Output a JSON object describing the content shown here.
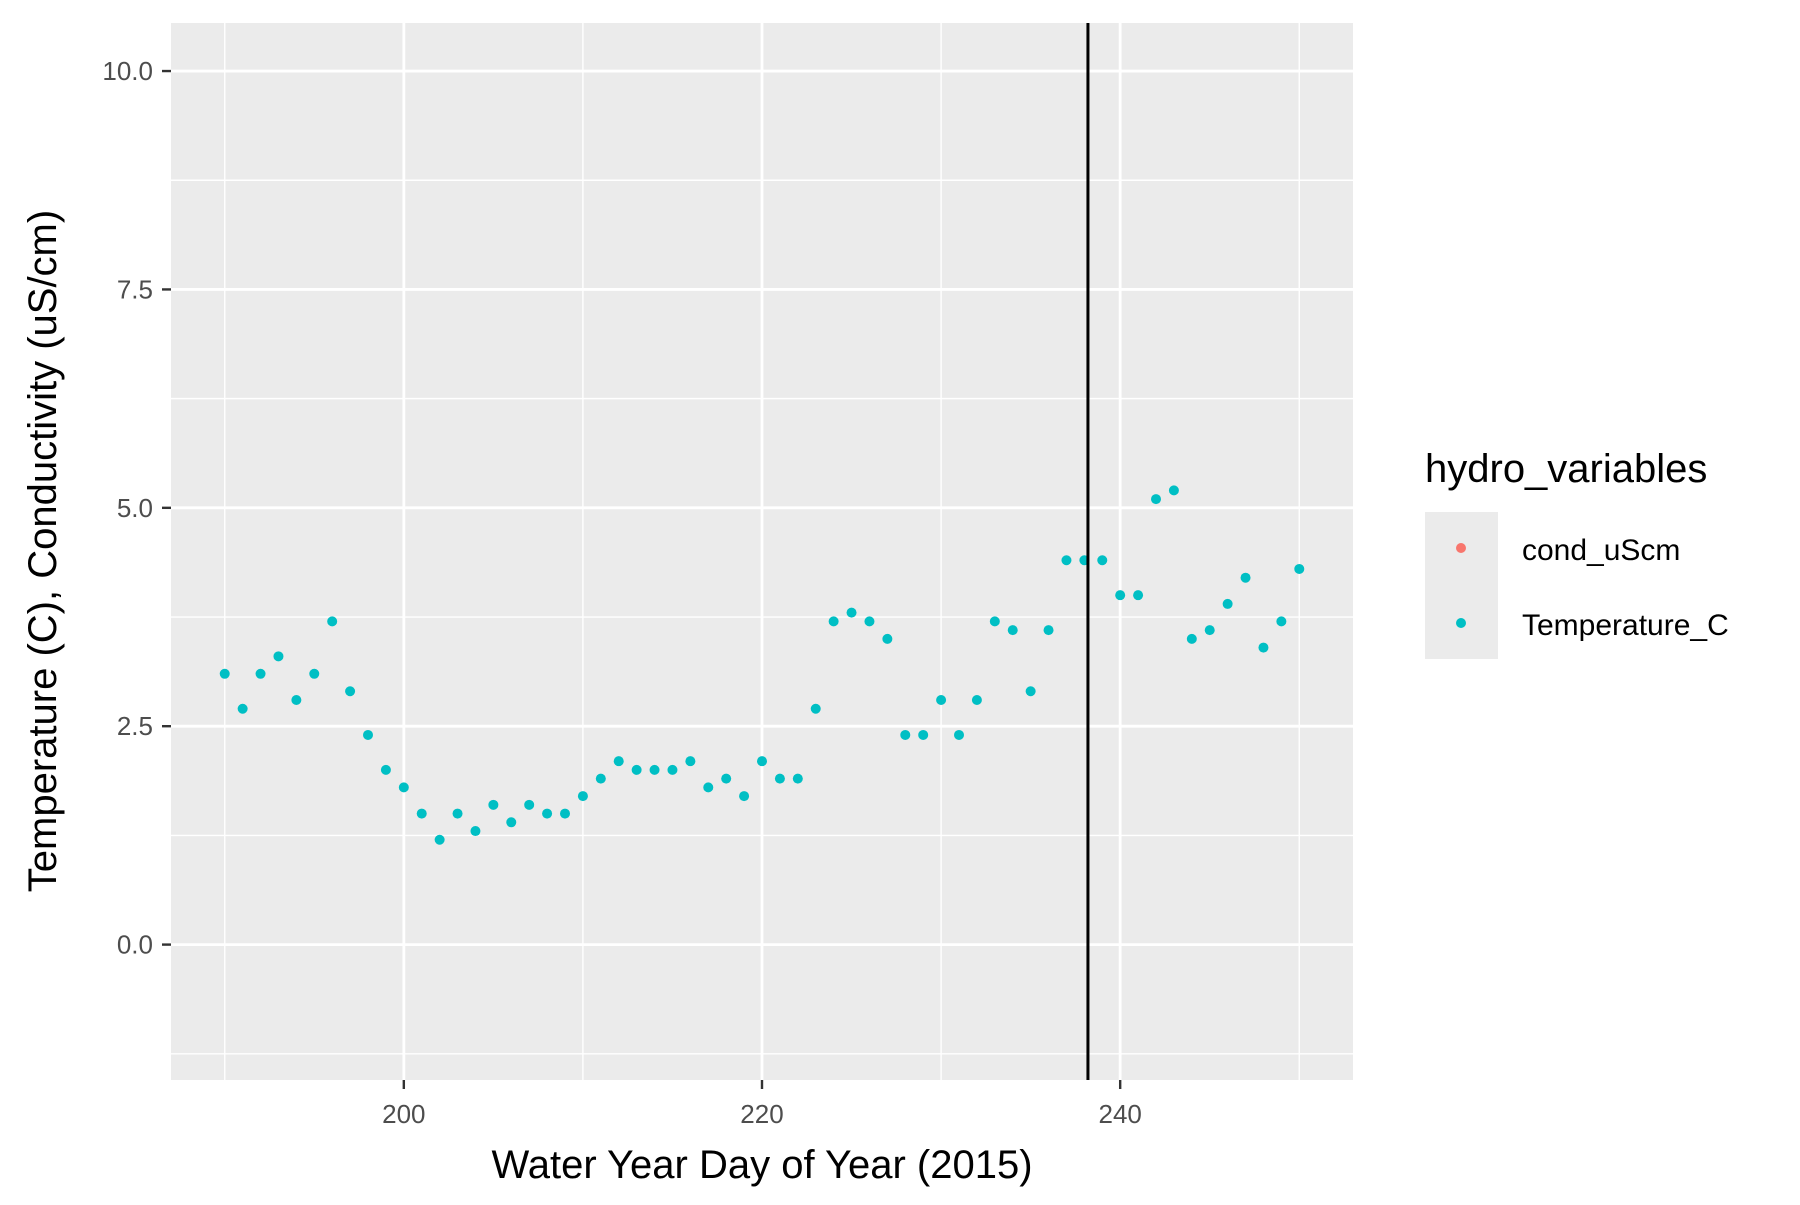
{
  "chart_data": {
    "type": "scatter",
    "title": "",
    "xlabel": "Water Year Day of Year (2015)",
    "ylabel": "Temperature (C), Conductivity (uS/cm)",
    "xlim": [
      187,
      253
    ],
    "ylim": [
      -1.55,
      10.55
    ],
    "x_ticks": [
      200,
      220,
      240
    ],
    "x_tick_labels": [
      "200",
      "220",
      "240"
    ],
    "y_ticks": [
      0,
      2.5,
      5,
      7.5,
      10
    ],
    "y_tick_labels": [
      "0.0",
      "2.5",
      "5.0",
      "7.5",
      "10.0"
    ],
    "grid": true,
    "panel_background": "#ebebeb",
    "vline": {
      "x": 238.2,
      "color": "#000000"
    },
    "legend": {
      "title": "hydro_variables",
      "placement": "right",
      "entries": [
        {
          "label": "cond_uScm",
          "color": "#f8766d"
        },
        {
          "label": "Temperature_C",
          "color": "#00bfc4"
        }
      ]
    },
    "series": [
      {
        "name": "cond_uScm",
        "color": "#f8766d",
        "x": [],
        "y": []
      },
      {
        "name": "Temperature_C",
        "color": "#00bfc4",
        "x": [
          190,
          191,
          192,
          193,
          194,
          195,
          196,
          197,
          198,
          199,
          200,
          201,
          202,
          203,
          204,
          205,
          206,
          207,
          208,
          209,
          210,
          211,
          212,
          213,
          214,
          215,
          216,
          217,
          218,
          219,
          220,
          221,
          222,
          223,
          224,
          225,
          226,
          227,
          228,
          229,
          230,
          231,
          232,
          233,
          234,
          235,
          236,
          237,
          238,
          239,
          240,
          241,
          242,
          243,
          244,
          245,
          246,
          247,
          248,
          249,
          250
        ],
        "y": [
          3.1,
          2.7,
          3.1,
          3.3,
          2.8,
          3.1,
          3.7,
          2.9,
          2.4,
          2.0,
          1.8,
          1.5,
          1.2,
          1.5,
          1.3,
          1.6,
          1.4,
          1.6,
          1.5,
          1.5,
          1.7,
          1.9,
          2.1,
          2.0,
          2.0,
          2.0,
          2.1,
          1.8,
          1.9,
          1.7,
          2.1,
          1.9,
          1.9,
          2.7,
          3.7,
          3.8,
          3.7,
          3.5,
          2.4,
          2.4,
          2.8,
          2.4,
          2.8,
          3.7,
          3.6,
          2.9,
          3.6,
          4.4,
          4.4,
          4.4,
          4.0,
          4.0,
          5.1,
          5.2,
          3.5,
          3.6,
          3.9,
          4.2,
          3.4,
          3.7,
          4.3
        ]
      }
    ]
  }
}
